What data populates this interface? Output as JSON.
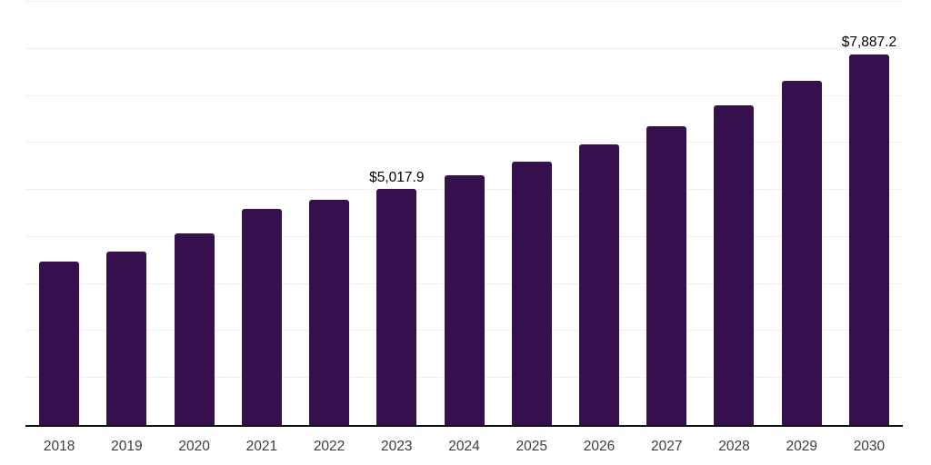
{
  "chart_data": {
    "type": "bar",
    "categories": [
      "2018",
      "2019",
      "2020",
      "2021",
      "2022",
      "2023",
      "2024",
      "2025",
      "2026",
      "2027",
      "2028",
      "2029",
      "2030"
    ],
    "values": [
      3475,
      3685,
      4075,
      4590,
      4795,
      5017.9,
      5310,
      5610,
      5960,
      6360,
      6800,
      7325,
      7887.2
    ],
    "data_labels": {
      "2023": "$5,017.9",
      "2030": "$7,887.2"
    },
    "title": "",
    "xlabel": "",
    "ylabel": "",
    "ylim": [
      0,
      9000
    ],
    "gridline_step": 1000,
    "grid": true,
    "legend": false,
    "y_tick_labels_visible": false,
    "colors": {
      "bar": "#36104d",
      "gridline": "#f0f0f0",
      "axis_line": "#161616",
      "tick_label": "#3d3d3d",
      "value_label": "#000000",
      "background": "#ffffff"
    }
  }
}
